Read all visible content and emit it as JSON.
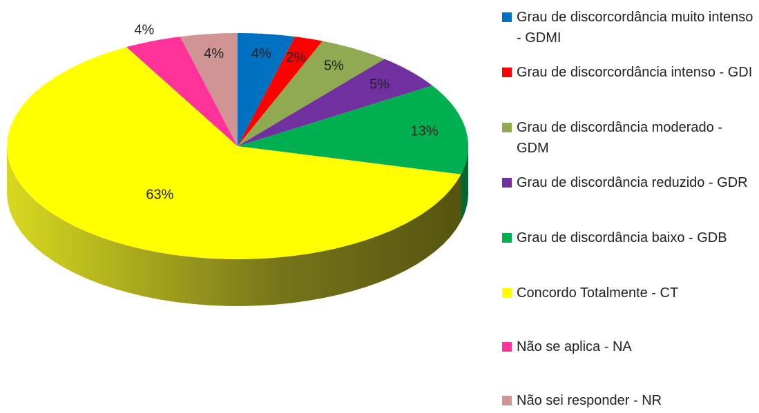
{
  "chart_data": {
    "type": "pie",
    "categories": [
      "Grau de discorcordância muito intenso - GDMI",
      "Grau de discorcordância intenso - GDI",
      "Grau de discordância moderado - GDM",
      "Grau de discordância reduzido - GDR",
      "Grau de discordância baixo - GDB",
      "Concordo Totalmente - CT",
      "Não se aplica - NA",
      "Não sei responder - NR"
    ],
    "values": [
      4,
      2,
      5,
      5,
      13,
      63,
      4,
      4
    ],
    "value_labels": [
      "4%",
      "2%",
      "5%",
      "5%",
      "13%",
      "63%",
      "4%",
      "4%"
    ],
    "colors": [
      "#0070c0",
      "#ff0000",
      "#8faa50",
      "#7030a0",
      "#00b050",
      "#ffff00",
      "#ff3399",
      "#d09494"
    ],
    "legend": "right"
  }
}
